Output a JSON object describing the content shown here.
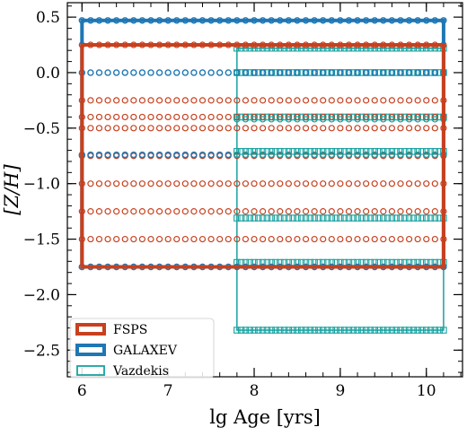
{
  "chart_data": {
    "type": "scatter",
    "xlabel": "lg Age [yrs]",
    "ylabel": "[Z/H]",
    "xlim": [
      5.83,
      10.42
    ],
    "ylim": [
      -2.74,
      0.63
    ],
    "xticks": [
      6,
      7,
      8,
      9,
      10
    ],
    "yticks": [
      0.5,
      0.0,
      -0.5,
      -1.0,
      -1.5,
      -2.0,
      -2.5
    ],
    "xtick_labels": [
      "6",
      "7",
      "8",
      "9",
      "10"
    ],
    "ytick_labels": [
      "0.5",
      "0.0",
      "−0.5",
      "−1.0",
      "−1.5",
      "−2.0",
      "−2.5"
    ],
    "grid": false,
    "legend_position": "lower-left",
    "series": [
      {
        "name": "FSPS",
        "color": "#c8401e",
        "marker": "circle",
        "x_range": [
          6.0,
          10.2
        ],
        "x_step": 0.1,
        "metallicities": [
          0.25,
          -0.25,
          -0.4,
          -0.5,
          -0.75,
          -1.0,
          -1.25,
          -1.5,
          -1.75
        ],
        "bounding_box": {
          "x": [
            6.0,
            10.2
          ],
          "y": [
            -1.75,
            0.25
          ]
        }
      },
      {
        "name": "GALAXEV",
        "color": "#1f77b4",
        "marker": "circle",
        "x_range": [
          6.0,
          10.2
        ],
        "x_step": 0.1,
        "metallicities": [
          0.47,
          0.0,
          -0.74,
          -1.75
        ],
        "bounding_box": {
          "x": [
            6.0,
            10.2
          ],
          "y": [
            -1.75,
            0.47
          ]
        }
      },
      {
        "name": "Vazdekis",
        "color": "#17a2a0",
        "marker": "square",
        "x_range": [
          7.8,
          10.2
        ],
        "x_step": 0.05,
        "metallicities": [
          0.22,
          0.0,
          -0.4,
          -0.71,
          -1.31,
          -1.71,
          -2.32
        ],
        "circle_metallicities": [
          -0.42,
          -0.74
        ],
        "bounding_box": {
          "x": [
            7.8,
            10.2
          ],
          "y": [
            -2.32,
            0.22
          ]
        }
      }
    ]
  }
}
